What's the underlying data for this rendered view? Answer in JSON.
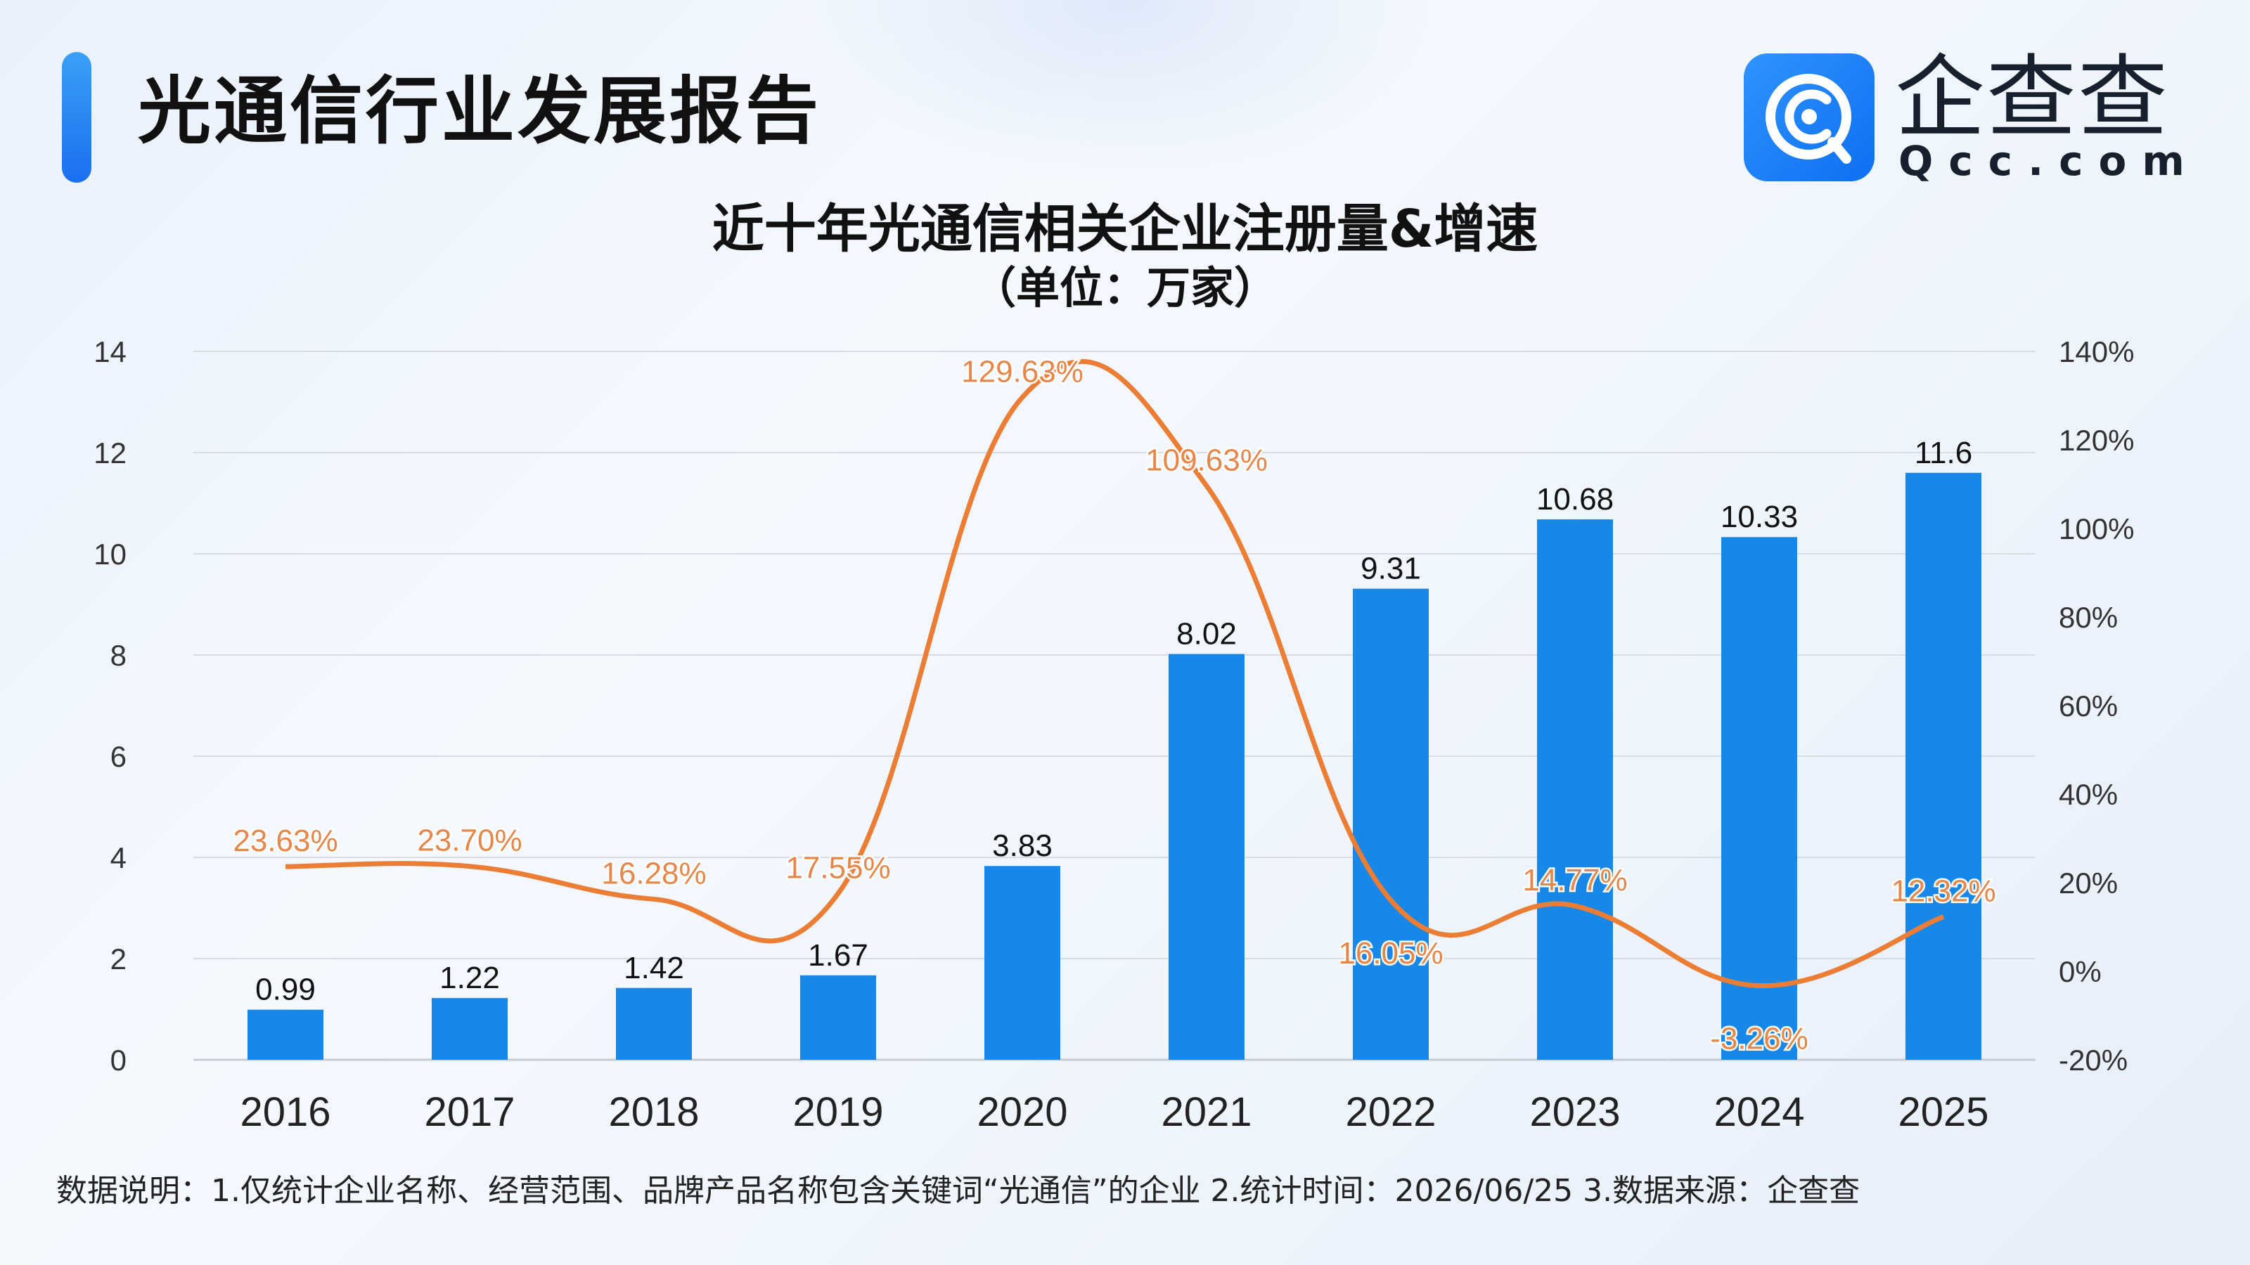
{
  "header": {
    "title": "光通信行业发展报告"
  },
  "brand": {
    "name": "企查查",
    "domain": "Qcc.com"
  },
  "footnote": "数据说明：1.仅统计企业名称、经营范围、品牌产品名称包含关键词“光通信”的企业   2.统计时间：2026/06/25   3.数据来源：企查查",
  "colors": {
    "bar": "#1787e8",
    "line": "#ec7d35",
    "label_line": "#e5874a",
    "text": "#111111"
  },
  "chart_data": {
    "type": "bar",
    "title": "近十年光通信相关企业注册量&增速",
    "subtitle": "（单位：万家）",
    "categories": [
      "2016",
      "2017",
      "2018",
      "2019",
      "2020",
      "2021",
      "2022",
      "2023",
      "2024",
      "2025"
    ],
    "series": [
      {
        "type": "bar",
        "axis": "left",
        "values": [
          0.99,
          1.22,
          1.42,
          1.67,
          3.83,
          8.02,
          9.31,
          10.68,
          10.33,
          11.6
        ],
        "labels": [
          "0.99",
          "1.22",
          "1.42",
          "1.67",
          "3.83",
          "8.02",
          "9.31",
          "10.68",
          "10.33",
          "11.6"
        ]
      },
      {
        "type": "line",
        "axis": "right",
        "smooth": true,
        "values": [
          23.63,
          23.7,
          16.28,
          17.55,
          129.63,
          109.63,
          16.05,
          14.77,
          -3.26,
          12.32
        ],
        "labels": [
          "23.63%",
          "23.70%",
          "16.28%",
          "17.55%",
          "129.63%",
          "109.63%",
          "16.05%",
          "14.77%",
          "-3.26%",
          "12.32%"
        ]
      }
    ],
    "left_axis": {
      "ylim": [
        0,
        14
      ],
      "ticks": [
        "0",
        "2",
        "4",
        "6",
        "8",
        "10",
        "12",
        "14"
      ]
    },
    "right_axis": {
      "ylim": [
        -20,
        140
      ],
      "unit": "%",
      "ticks": [
        "-20%",
        "0%",
        "20%",
        "40%",
        "60%",
        "80%",
        "100%",
        "120%",
        "140%"
      ]
    },
    "grid": true,
    "legend": "none"
  }
}
